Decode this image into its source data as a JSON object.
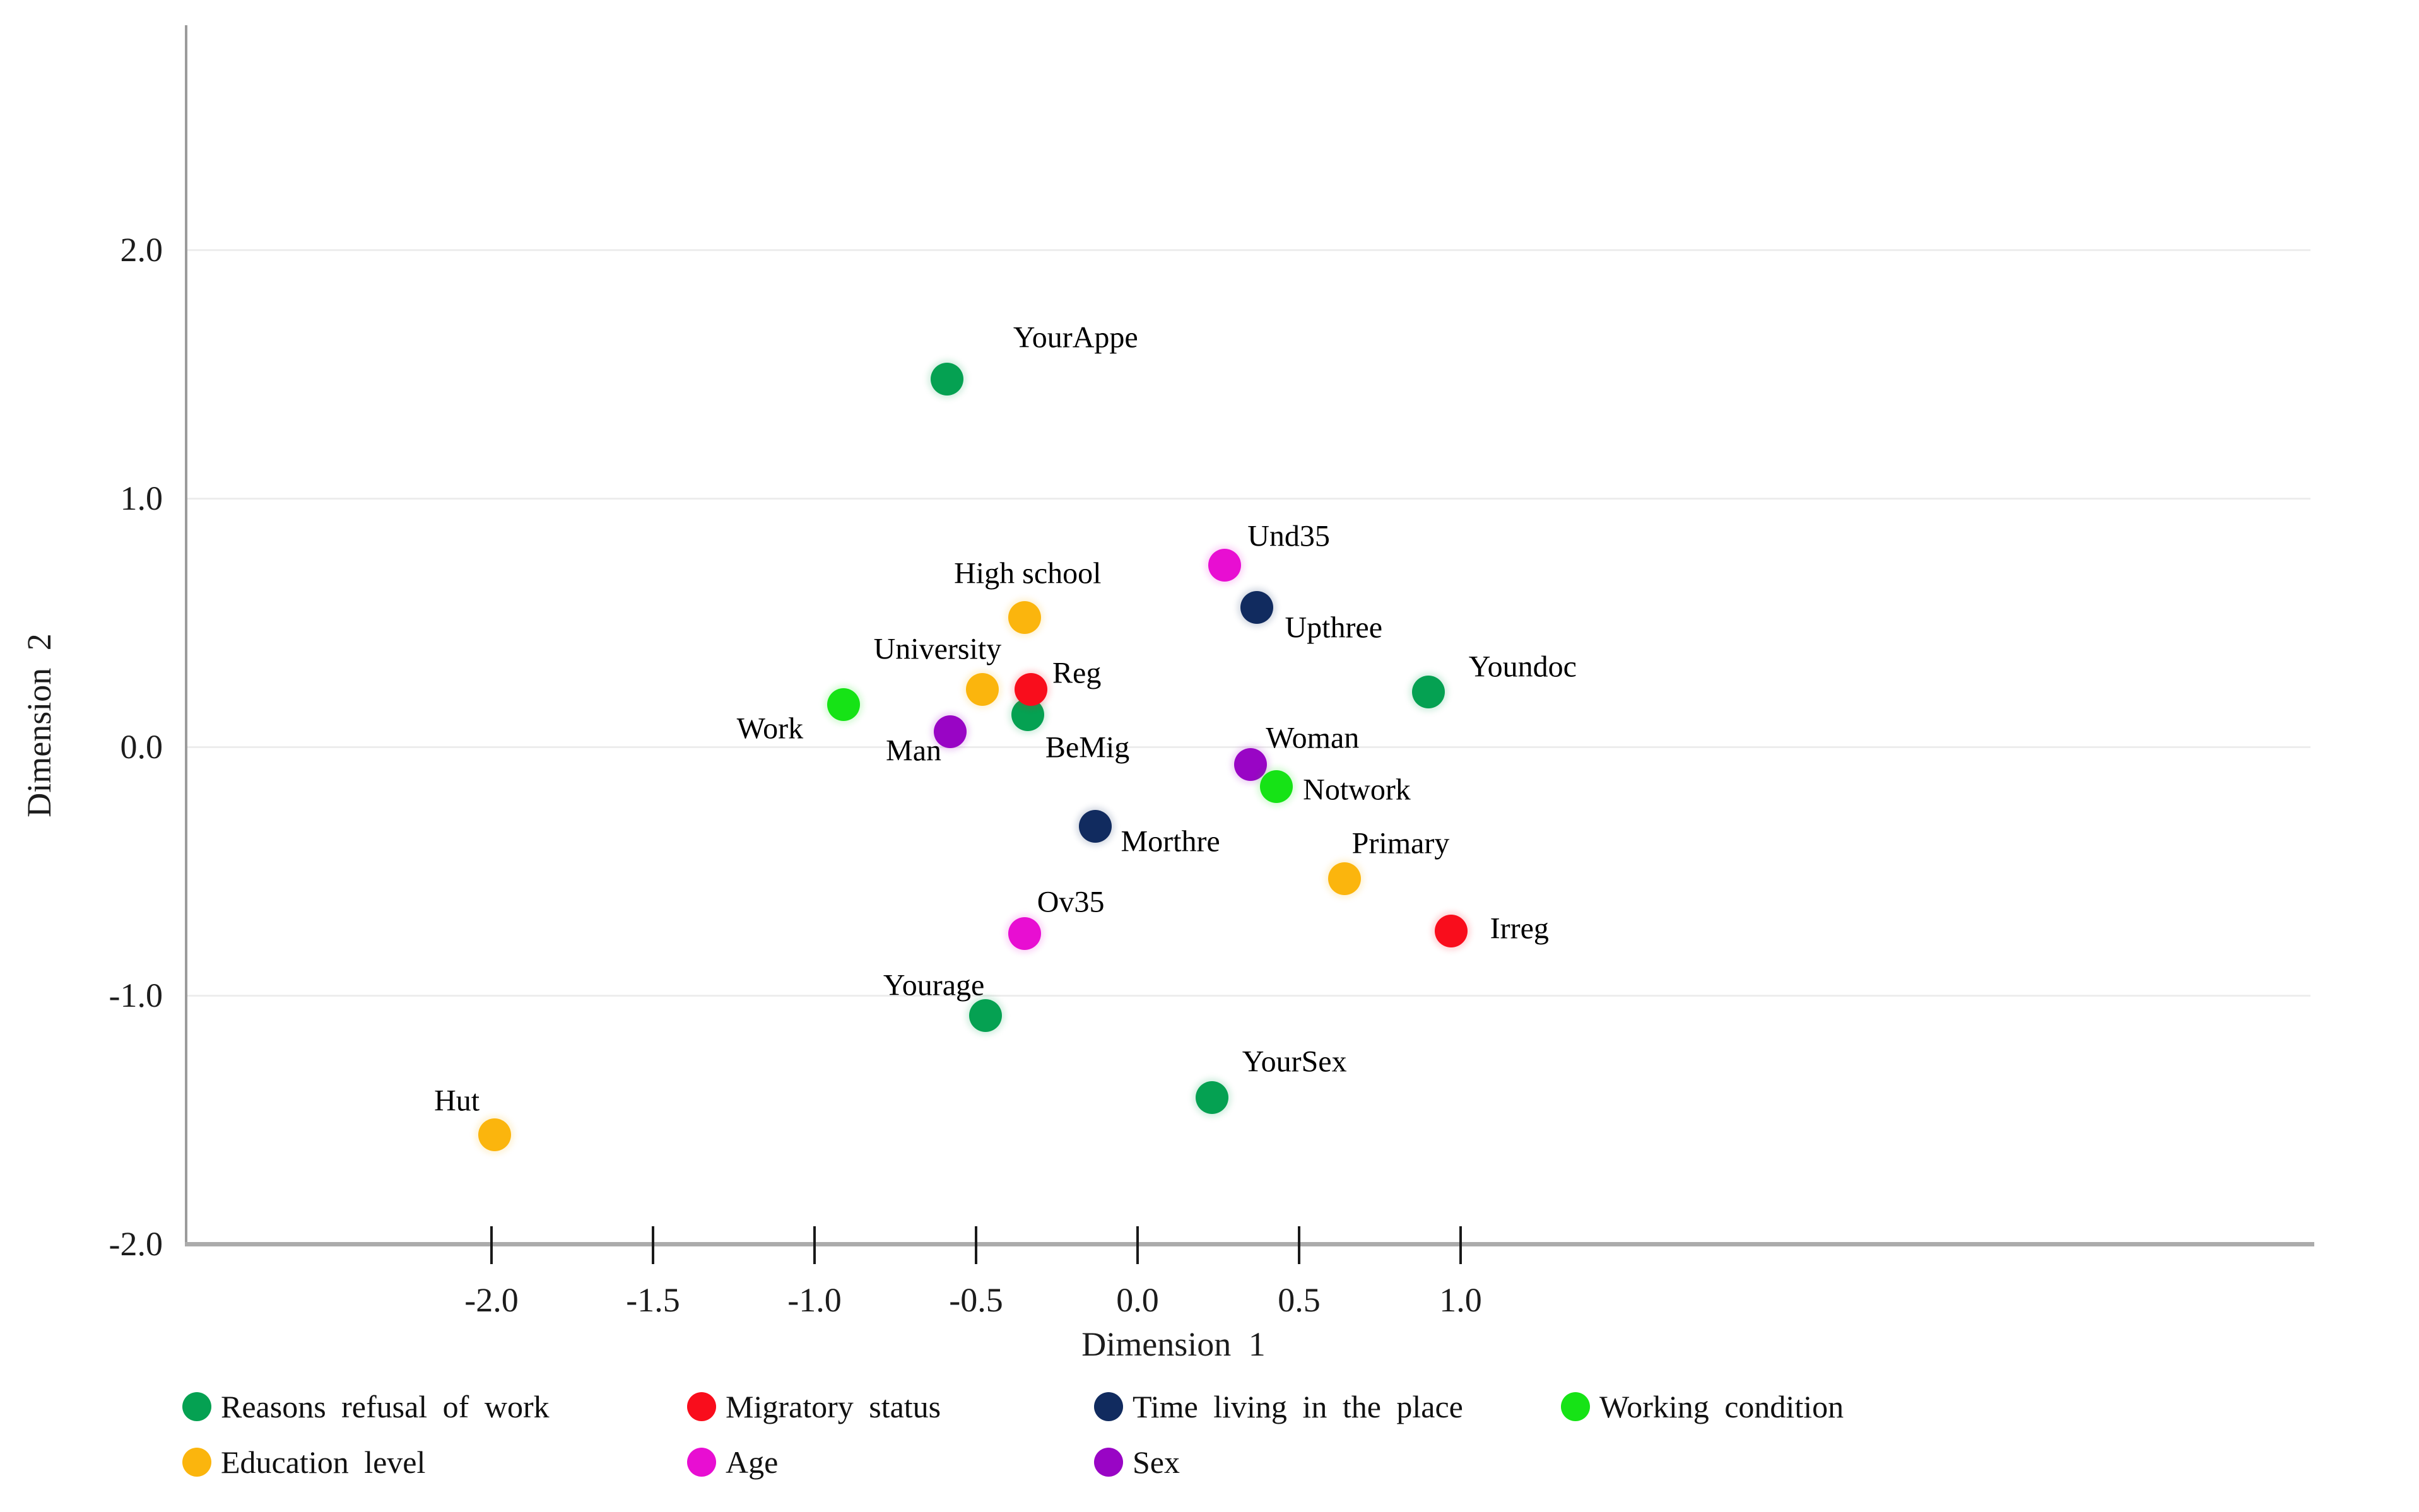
{
  "chart_data": {
    "type": "scatter",
    "title": "",
    "xlabel": "Dimension 1",
    "ylabel": "Dimension 2",
    "x_ticks": [
      "-2.0",
      "-1.5",
      "-1.0",
      "-0.5",
      "0.0",
      "0.5",
      "1.0"
    ],
    "y_ticks": [
      "2.0",
      "1.0",
      "0.0",
      "-1.0",
      "-2.0"
    ],
    "xlim": [
      -2.9,
      3.6
    ],
    "ylim": [
      -2.05,
      2.9
    ],
    "grid": "horizontal-only",
    "legend_position": "bottom",
    "point_label_color": "#000000",
    "series": [
      {
        "name": "Reasons refusal of work",
        "color": "#05A152",
        "points": [
          {
            "label": "YourAppe",
            "x": -0.59,
            "y": 1.48,
            "anchor": "left",
            "dx": 105,
            "dy": -66
          },
          {
            "label": "BeMig",
            "x": -0.34,
            "y": 0.13,
            "anchor": "left",
            "dx": 28,
            "dy": 52
          },
          {
            "label": "Youndoc",
            "x": 0.9,
            "y": 0.22,
            "anchor": "left",
            "dx": 64,
            "dy": -40
          },
          {
            "label": "Yourage",
            "x": -0.47,
            "y": -1.08,
            "anchor": "right",
            "dx": -2,
            "dy": -48
          },
          {
            "label": "YourSex",
            "x": 0.23,
            "y": -1.41,
            "anchor": "left",
            "dx": 48,
            "dy": -57
          }
        ]
      },
      {
        "name": "Migratory status",
        "color": "#F90D1C",
        "points": [
          {
            "label": "Reg",
            "x": -0.33,
            "y": 0.23,
            "anchor": "left",
            "dx": 34,
            "dy": -26
          },
          {
            "label": "Irreg",
            "x": 0.97,
            "y": -0.74,
            "anchor": "left",
            "dx": 62,
            "dy": -4
          }
        ]
      },
      {
        "name": "Time living in the place",
        "color": "#112B5F",
        "points": [
          {
            "label": "Upthree",
            "x": 0.37,
            "y": 0.56,
            "anchor": "left",
            "dx": 44,
            "dy": 32
          },
          {
            "label": "Morthre",
            "x": -0.13,
            "y": -0.32,
            "anchor": "left",
            "dx": 40,
            "dy": 24
          }
        ]
      },
      {
        "name": "Education level",
        "color": "#FBB50D",
        "points": [
          {
            "label": "High school",
            "x": -0.35,
            "y": 0.52,
            "anchor": "center",
            "dx": 5,
            "dy": -70
          },
          {
            "label": "University",
            "x": -0.48,
            "y": 0.23,
            "anchor": "right",
            "dx": 30,
            "dy": -64
          },
          {
            "label": "Primary",
            "x": 0.64,
            "y": -0.53,
            "anchor": "left",
            "dx": 12,
            "dy": -56
          },
          {
            "label": "Hut",
            "x": -1.99,
            "y": -1.56,
            "anchor": "right",
            "dx": -24,
            "dy": -54
          }
        ]
      },
      {
        "name": "Age",
        "color": "#E80ED2",
        "points": [
          {
            "label": "Und35",
            "x": 0.27,
            "y": 0.73,
            "anchor": "left",
            "dx": 36,
            "dy": -46
          },
          {
            "label": "Ov35",
            "x": -0.35,
            "y": -0.75,
            "anchor": "left",
            "dx": 20,
            "dy": -50
          }
        ]
      },
      {
        "name": "Sex",
        "color": "#9905C5",
        "points": [
          {
            "label": "Man",
            "x": -0.58,
            "y": 0.06,
            "anchor": "right",
            "dx": -14,
            "dy": 30
          },
          {
            "label": "Woman",
            "x": 0.35,
            "y": -0.07,
            "anchor": "left",
            "dx": 24,
            "dy": -42
          }
        ]
      },
      {
        "name": "Working condition",
        "color": "#16E316",
        "points": [
          {
            "label": "Work",
            "x": -0.91,
            "y": 0.17,
            "anchor": "right",
            "dx": -64,
            "dy": 38
          },
          {
            "label": "Notwork",
            "x": 0.43,
            "y": -0.16,
            "anchor": "left",
            "dx": 42,
            "dy": 5
          }
        ]
      }
    ],
    "legend": {
      "rows": [
        [
          "Reasons refusal of work",
          "Migratory status",
          "Time living in the place",
          "Working condition"
        ],
        [
          "Education level",
          "Age",
          "Sex"
        ]
      ]
    }
  }
}
